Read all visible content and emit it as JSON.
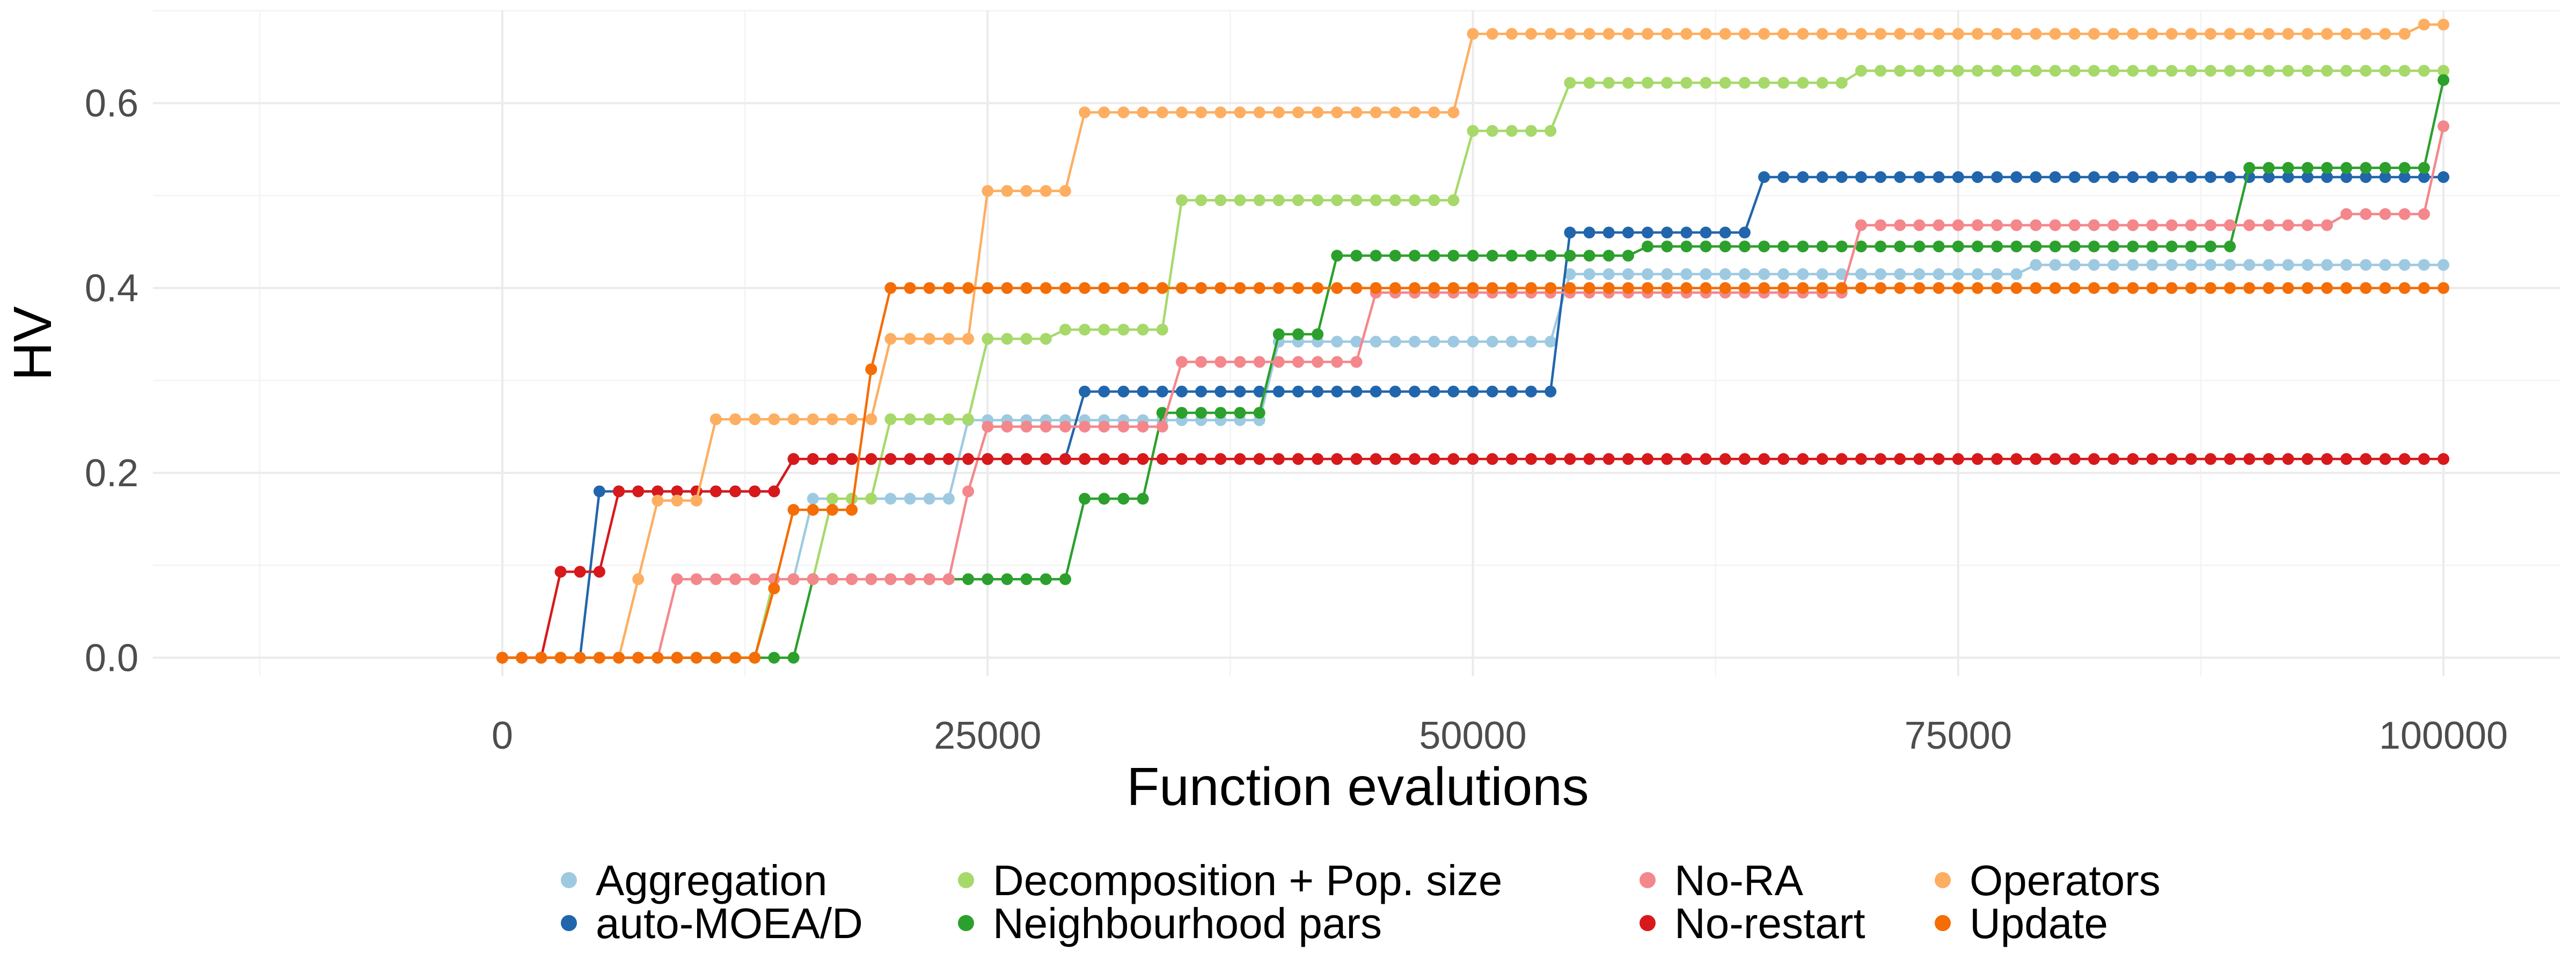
{
  "chart_data": {
    "type": "line",
    "title": "",
    "xlabel": "Function evalutions",
    "ylabel": "HV",
    "xlim": [
      -18000,
      106000
    ],
    "ylim": [
      -0.02,
      0.7
    ],
    "x_ticks": [
      0,
      25000,
      50000,
      75000,
      100000
    ],
    "y_ticks": [
      0.0,
      0.2,
      0.4,
      0.6
    ],
    "x_tick_labels": [
      "0",
      "25000",
      "50000",
      "75000",
      "100000"
    ],
    "y_tick_labels": [
      "0.0",
      "0.2",
      "0.4",
      "0.6"
    ],
    "grid": true,
    "legend_position": "bottom",
    "x": [
      0,
      1000,
      2000,
      3000,
      4000,
      5000,
      6000,
      7000,
      8000,
      9000,
      10000,
      11000,
      12000,
      13000,
      14000,
      15000,
      16000,
      17000,
      18000,
      19000,
      20000,
      21000,
      22000,
      23000,
      24000,
      25000,
      26000,
      27000,
      28000,
      29000,
      30000,
      31000,
      32000,
      33000,
      34000,
      35000,
      36000,
      37000,
      38000,
      39000,
      40000,
      41000,
      42000,
      43000,
      44000,
      45000,
      46000,
      47000,
      48000,
      49000,
      50000,
      51000,
      52000,
      53000,
      54000,
      55000,
      56000,
      57000,
      58000,
      59000,
      60000,
      61000,
      62000,
      63000,
      64000,
      65000,
      66000,
      67000,
      68000,
      69000,
      70000,
      71000,
      72000,
      73000,
      74000,
      75000,
      76000,
      77000,
      78000,
      79000,
      80000,
      81000,
      82000,
      83000,
      84000,
      85000,
      86000,
      87000,
      88000,
      89000,
      90000,
      91000,
      92000,
      93000,
      94000,
      95000,
      96000,
      97000,
      98000,
      99000,
      100000
    ],
    "series": [
      {
        "name": "Aggregation",
        "color": "#9ecae1",
        "steps": [
          [
            0,
            0.0
          ],
          [
            14000,
            0.085
          ],
          [
            16000,
            0.172
          ],
          [
            24000,
            0.257
          ],
          [
            40000,
            0.342
          ],
          [
            55000,
            0.415
          ],
          [
            79000,
            0.425
          ]
        ]
      },
      {
        "name": "auto-MOEA/D",
        "color": "#2166ac",
        "steps": [
          [
            0,
            0.0
          ],
          [
            5000,
            0.18
          ],
          [
            15000,
            0.215
          ],
          [
            30000,
            0.288
          ],
          [
            55000,
            0.46
          ],
          [
            65000,
            0.52
          ]
        ]
      },
      {
        "name": "Decomposition + Pop. size",
        "color": "#a6d96a",
        "steps": [
          [
            0,
            0.0
          ],
          [
            14000,
            0.085
          ],
          [
            17000,
            0.172
          ],
          [
            20000,
            0.258
          ],
          [
            25000,
            0.345
          ],
          [
            29000,
            0.355
          ],
          [
            35000,
            0.495
          ],
          [
            50000,
            0.57
          ],
          [
            55000,
            0.622
          ],
          [
            70000,
            0.635
          ]
        ]
      },
      {
        "name": "Neighbourhood pars",
        "color": "#2ca02c",
        "steps": [
          [
            0,
            0.0
          ],
          [
            9000,
            0.0
          ],
          [
            16000,
            0.085
          ],
          [
            30000,
            0.172
          ],
          [
            34000,
            0.265
          ],
          [
            40000,
            0.35
          ],
          [
            43000,
            0.435
          ],
          [
            59000,
            0.445
          ],
          [
            90000,
            0.53
          ],
          [
            100000,
            0.625
          ]
        ]
      },
      {
        "name": "No-RA",
        "color": "#f4878b",
        "steps": [
          [
            0,
            0.0
          ],
          [
            9000,
            0.085
          ],
          [
            24000,
            0.18
          ],
          [
            25000,
            0.25
          ],
          [
            35000,
            0.32
          ],
          [
            45000,
            0.395
          ],
          [
            70000,
            0.468
          ],
          [
            95000,
            0.48
          ],
          [
            100000,
            0.575
          ]
        ]
      },
      {
        "name": "No-restart",
        "color": "#d7191c",
        "steps": [
          [
            0,
            0.0
          ],
          [
            3000,
            0.093
          ],
          [
            6000,
            0.18
          ],
          [
            15000,
            0.215
          ]
        ]
      },
      {
        "name": "Operators",
        "color": "#fdae61",
        "steps": [
          [
            0,
            0.0
          ],
          [
            7000,
            0.085
          ],
          [
            8000,
            0.17
          ],
          [
            11000,
            0.258
          ],
          [
            20000,
            0.345
          ],
          [
            25000,
            0.505
          ],
          [
            30000,
            0.59
          ],
          [
            50000,
            0.675
          ],
          [
            99000,
            0.685
          ]
        ]
      },
      {
        "name": "Update",
        "color": "#f46d06",
        "steps": [
          [
            0,
            0.0
          ],
          [
            14000,
            0.075
          ],
          [
            15000,
            0.16
          ],
          [
            19000,
            0.312
          ],
          [
            20000,
            0.4
          ]
        ]
      }
    ]
  }
}
